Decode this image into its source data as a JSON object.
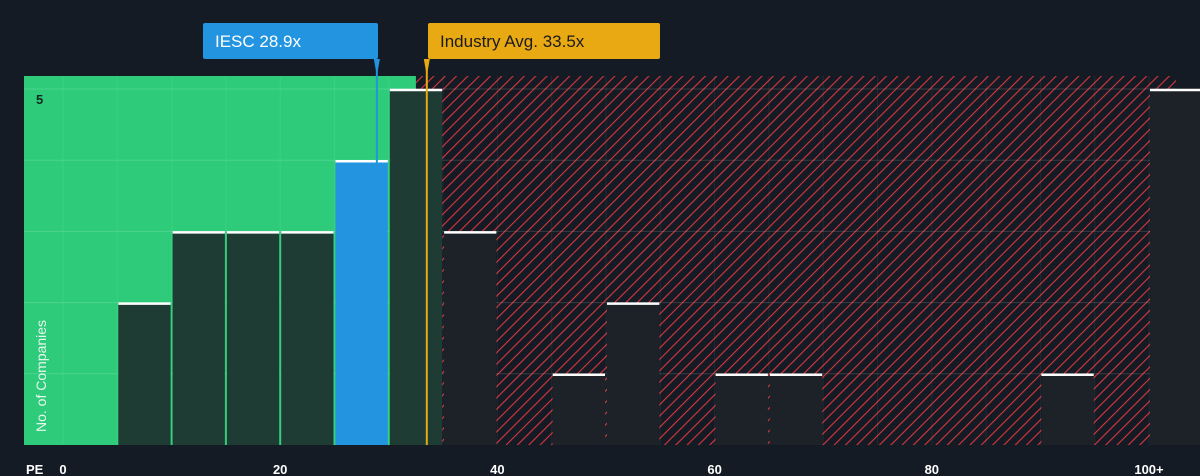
{
  "chart_data": {
    "type": "bar",
    "title": "",
    "xlabel": "PE",
    "ylabel": "No. of Companies",
    "x_ticks": [
      "0",
      "20",
      "40",
      "60",
      "80",
      "100+"
    ],
    "y_ticks": [
      "5"
    ],
    "xlim": [
      0,
      100
    ],
    "ylim": [
      0,
      5
    ],
    "bin_width": 5,
    "bins": [
      {
        "x_start": 5,
        "count": 2
      },
      {
        "x_start": 10,
        "count": 3
      },
      {
        "x_start": 15,
        "count": 3
      },
      {
        "x_start": 20,
        "count": 3
      },
      {
        "x_start": 25,
        "count": 4,
        "highlight": true
      },
      {
        "x_start": 30,
        "count": 5
      },
      {
        "x_start": 35,
        "count": 3
      },
      {
        "x_start": 45,
        "count": 1
      },
      {
        "x_start": 50,
        "count": 2
      },
      {
        "x_start": 60,
        "count": 1
      },
      {
        "x_start": 65,
        "count": 1
      },
      {
        "x_start": 90,
        "count": 1
      },
      {
        "x_start": 100,
        "count": 5
      }
    ],
    "company": {
      "label": "IESC 28.9x",
      "value": 28.9
    },
    "industry": {
      "label": "Industry Avg. 33.5x",
      "value": 33.5
    },
    "fair_zone_end": 32.5,
    "colors": {
      "background": "#151b24",
      "undervalued_zone": "#2ecc7a",
      "overvalued_hatch": "#d9363e",
      "bar": "#1e3c33",
      "bar_over": "#1d2228",
      "company": "#2394e0",
      "industry": "#e8a913",
      "cap": "#ffffff"
    }
  }
}
